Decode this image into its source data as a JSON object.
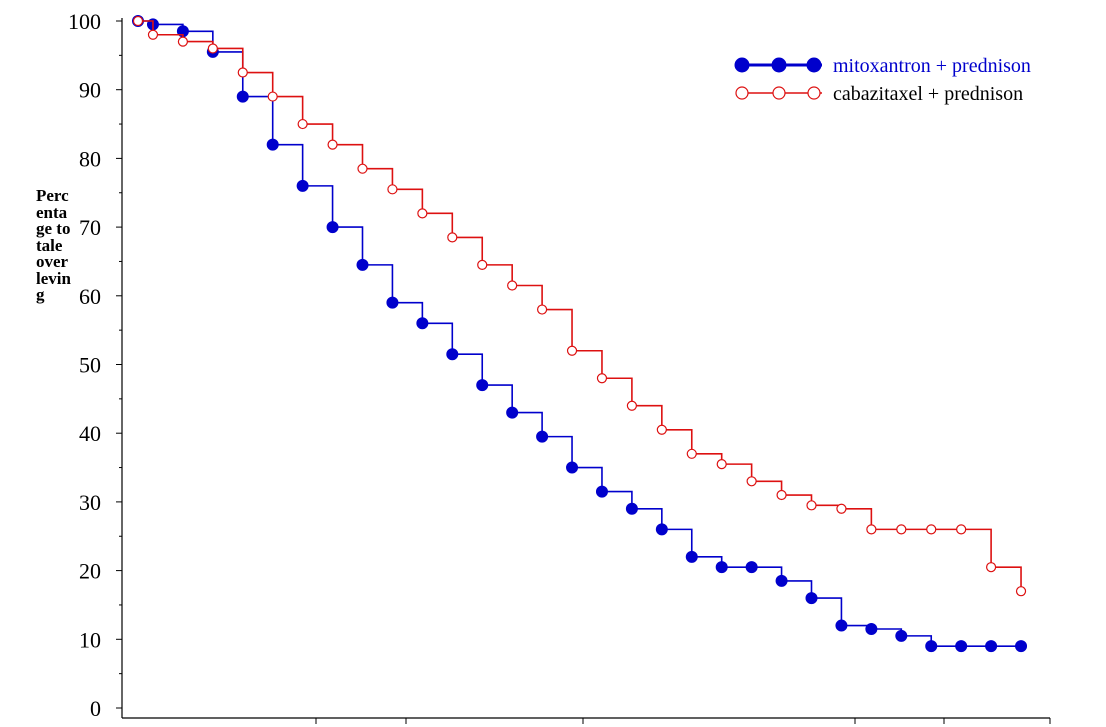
{
  "chart_data": {
    "type": "line",
    "title": "",
    "xlabel": "",
    "ylabel": "Percentage totale overleving",
    "ylim": [
      0,
      100
    ],
    "xlim": [
      0,
      30
    ],
    "yticks": [
      0,
      10,
      20,
      30,
      40,
      50,
      60,
      70,
      80,
      90,
      100
    ],
    "xtick_labels": [],
    "grid": false,
    "legend_position": "top-right",
    "series": [
      {
        "name": "mitoxantron + prednison",
        "color": "#0000cc",
        "marker": "filled-circle",
        "x": [
          0,
          0.5,
          1.5,
          2.5,
          3.5,
          4.5,
          5.5,
          6.5,
          7.5,
          8.5,
          9.5,
          10.5,
          11.5,
          12.5,
          13.5,
          14.5,
          15.5,
          16.5,
          17.5,
          18.5,
          19.5,
          20.5,
          21.5,
          22.5,
          23.5,
          24.5,
          25.5,
          26.5,
          27.5,
          28.5,
          29.5
        ],
        "y": [
          100,
          99.5,
          98.5,
          95.5,
          89,
          82,
          76,
          70,
          64.5,
          59,
          56,
          51.5,
          47,
          43,
          39.5,
          35,
          31.5,
          29,
          26,
          22,
          20.5,
          20.5,
          18.5,
          16,
          12,
          11.5,
          10.5,
          9,
          9,
          9,
          9
        ]
      },
      {
        "name": "cabazitaxel + prednison",
        "color": "#dd1111",
        "marker": "open-circle",
        "x": [
          0,
          0.5,
          1.5,
          2.5,
          3.5,
          4.5,
          5.5,
          6.5,
          7.5,
          8.5,
          9.5,
          10.5,
          11.5,
          12.5,
          13.5,
          14.5,
          15.5,
          16.5,
          17.5,
          18.5,
          19.5,
          20.5,
          21.5,
          22.5,
          23.5,
          24.5,
          25.5,
          26.5,
          27.5,
          28.5,
          29.5
        ],
        "y": [
          100,
          98,
          97,
          96,
          92.5,
          89,
          85,
          82,
          78.5,
          75.5,
          72,
          68.5,
          64.5,
          61.5,
          58,
          52,
          48,
          44,
          40.5,
          37,
          35.5,
          33,
          31,
          29.5,
          29,
          26,
          26,
          26,
          26,
          20.5,
          17
        ]
      }
    ]
  }
}
